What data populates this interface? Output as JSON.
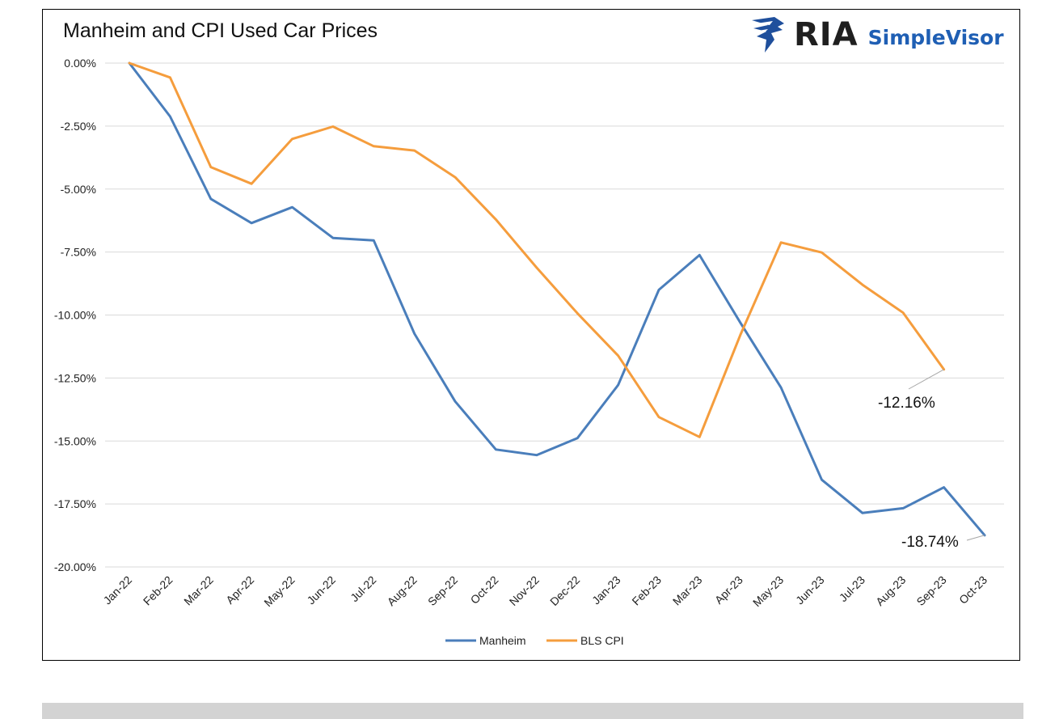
{
  "chart_data": {
    "type": "line",
    "title": "Manheim and CPI Used Car Prices",
    "categories": [
      "Jan-22",
      "Feb-22",
      "Mar-22",
      "Apr-22",
      "May-22",
      "Jun-22",
      "Jul-22",
      "Aug-22",
      "Sep-22",
      "Oct-22",
      "Nov-22",
      "Dec-22",
      "Jan-23",
      "Feb-23",
      "Mar-23",
      "Apr-23",
      "May-23",
      "Jun-23",
      "Jul-23",
      "Aug-23",
      "Sep-23",
      "Oct-23"
    ],
    "y_ticks": [
      "0.00%",
      "-2.50%",
      "-5.00%",
      "-7.50%",
      "-10.00%",
      "-12.50%",
      "-15.00%",
      "-17.50%",
      "-20.00%"
    ],
    "ylim": [
      -20,
      0
    ],
    "series": [
      {
        "name": "Manheim",
        "color": "#4a7ebb",
        "values": [
          0,
          -2.12,
          -5.39,
          -6.35,
          -5.72,
          -6.94,
          -7.04,
          -10.74,
          -13.43,
          -15.34,
          -15.56,
          -14.89,
          -12.78,
          -9.0,
          -7.62,
          -10.3,
          -12.88,
          -16.54,
          -17.86,
          -17.67,
          -16.84,
          -18.74
        ]
      },
      {
        "name": "BLS CPI",
        "color": "#f59d3d",
        "values": [
          0,
          -0.57,
          -4.13,
          -4.79,
          -3.01,
          -2.52,
          -3.3,
          -3.47,
          -4.53,
          -6.21,
          -8.12,
          -9.93,
          -11.61,
          -14.05,
          -14.84,
          -10.8,
          -7.12,
          -7.52,
          -8.8,
          -9.91,
          -12.16,
          null
        ]
      }
    ],
    "annotations": [
      {
        "label": "-12.16%",
        "series": "BLS CPI",
        "category": "Sep-23"
      },
      {
        "label": "-18.74%",
        "series": "Manheim",
        "category": "Oct-23"
      }
    ],
    "legend": {
      "position": "bottom",
      "items": [
        "Manheim",
        "BLS CPI"
      ]
    },
    "grid": true
  },
  "logo": {
    "ria": "RIA",
    "simplevisor": "SimpleVisor",
    "brand_color": "#1f5fb4"
  }
}
